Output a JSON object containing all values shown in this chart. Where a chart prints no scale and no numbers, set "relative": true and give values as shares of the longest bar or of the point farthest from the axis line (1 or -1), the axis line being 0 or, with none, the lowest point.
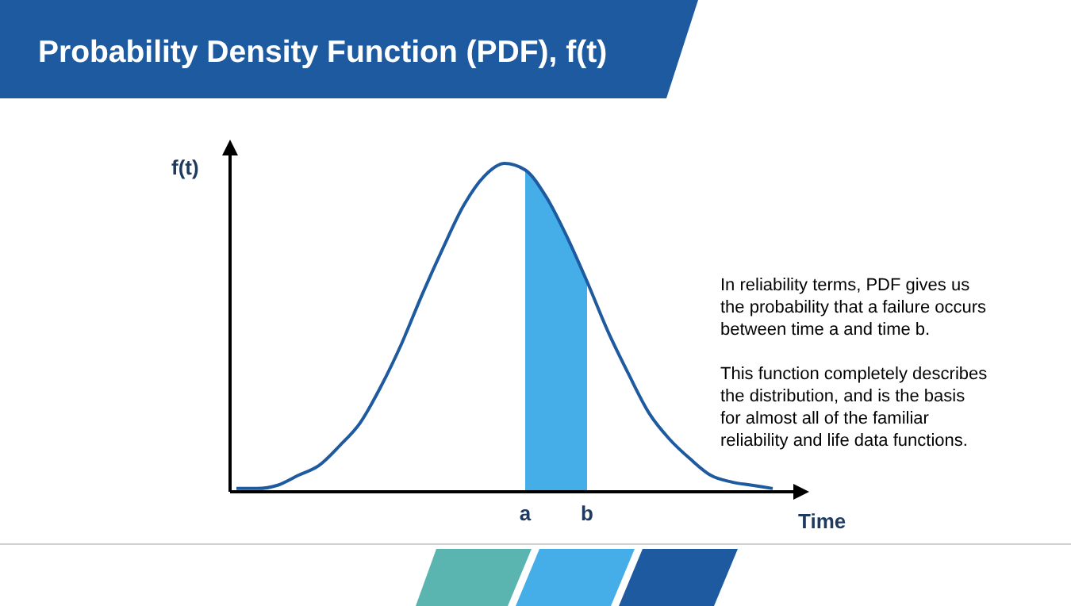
{
  "chart_data": {
    "type": "line",
    "title": "Probability Density Function (PDF), f(t)",
    "xlabel": "Time",
    "ylabel": "f(t)",
    "relative": true,
    "categories": [
      null,
      null,
      null,
      null,
      null,
      null,
      null,
      null,
      null,
      null,
      null,
      null,
      null,
      null,
      "a",
      null,
      null,
      "b",
      null,
      null,
      null,
      null,
      null,
      null,
      null,
      null,
      null
    ],
    "series": [
      {
        "type": "area",
        "color": "#45aee8",
        "values": [
          null,
          null,
          null,
          null,
          null,
          null,
          null,
          null,
          null,
          null,
          null,
          null,
          null,
          null,
          0.98,
          0.9,
          0.78,
          0.64,
          null,
          null,
          null,
          null,
          null,
          null,
          null,
          null,
          null
        ]
      },
      {
        "type": "line",
        "color": "#1e5aa0",
        "values": [
          0.01,
          0.01,
          0.02,
          0.05,
          0.08,
          0.14,
          0.21,
          0.32,
          0.45,
          0.6,
          0.74,
          0.87,
          0.96,
          1,
          0.98,
          0.9,
          0.78,
          0.64,
          0.49,
          0.36,
          0.24,
          0.16,
          0.1,
          0.05,
          0.03,
          0.02,
          0.01
        ]
      }
    ],
    "annotations": [
      "In reliability terms, PDF gives us the probability that a failure occurs between time a and time b.",
      "This function completely describes the distribution, and is the basis for almost all of the familiar reliability and life data functions."
    ]
  }
}
